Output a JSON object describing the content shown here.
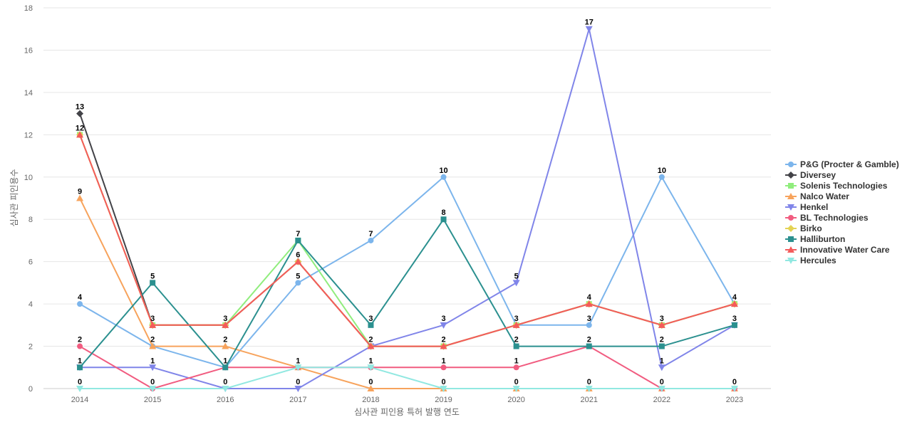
{
  "chart_data": {
    "type": "line",
    "title": "",
    "xlabel": "심사관 피인용 특허 발행 연도",
    "ylabel": "심사관 피인용수",
    "ylim": [
      0,
      18
    ],
    "yticks": [
      0,
      2,
      4,
      6,
      8,
      10,
      12,
      14,
      16,
      18
    ],
    "categories": [
      "2014",
      "2015",
      "2016",
      "2017",
      "2018",
      "2019",
      "2020",
      "2021",
      "2022",
      "2023"
    ],
    "legend_position": "right",
    "series": [
      {
        "name": "P&G (Procter & Gamble)",
        "color": "#7cb5ec",
        "marker": "circle",
        "values": [
          4,
          2,
          1,
          5,
          7,
          10,
          3,
          3,
          10,
          4
        ]
      },
      {
        "name": "Diversey",
        "color": "#434348",
        "marker": "diamond",
        "values": [
          13,
          3,
          3,
          6,
          2,
          2,
          3,
          4,
          3,
          4
        ]
      },
      {
        "name": "Solenis Technologies",
        "color": "#90ed7d",
        "marker": "square",
        "values": [
          12,
          3,
          3,
          7,
          2,
          2,
          3,
          4,
          3,
          4
        ]
      },
      {
        "name": "Nalco Water",
        "color": "#f7a35c",
        "marker": "triangle",
        "values": [
          9,
          2,
          2,
          1,
          0,
          0,
          0,
          0,
          0,
          0
        ]
      },
      {
        "name": "Henkel",
        "color": "#8085e9",
        "marker": "triangle-down",
        "values": [
          1,
          1,
          0,
          0,
          2,
          3,
          5,
          17,
          1,
          3
        ]
      },
      {
        "name": "BL Technologies",
        "color": "#f15c80",
        "marker": "circle",
        "values": [
          2,
          0,
          1,
          1,
          1,
          1,
          1,
          2,
          0,
          0
        ]
      },
      {
        "name": "Birko",
        "color": "#e4d354",
        "marker": "diamond",
        "values": [
          12,
          3,
          3,
          6,
          2,
          2,
          3,
          4,
          3,
          4
        ]
      },
      {
        "name": "Halliburton",
        "color": "#2b908f",
        "marker": "square",
        "values": [
          1,
          5,
          1,
          7,
          3,
          8,
          2,
          2,
          2,
          3
        ]
      },
      {
        "name": "Innovative Water Care",
        "color": "#f45b5b",
        "marker": "triangle",
        "values": [
          12,
          3,
          3,
          6,
          2,
          2,
          3,
          4,
          3,
          4
        ]
      },
      {
        "name": "Hercules",
        "color": "#91e8e1",
        "marker": "triangle-down",
        "values": [
          0,
          0,
          0,
          1,
          1,
          0,
          0,
          0,
          0,
          0
        ]
      }
    ],
    "data_labels": [
      {
        "x": "2014",
        "y": 13,
        "text": "13"
      },
      {
        "x": "2014",
        "y": 12,
        "text": "12"
      },
      {
        "x": "2014",
        "y": 9,
        "text": "9"
      },
      {
        "x": "2014",
        "y": 4,
        "text": "4"
      },
      {
        "x": "2014",
        "y": 2,
        "text": "2"
      },
      {
        "x": "2014",
        "y": 1,
        "text": "1"
      },
      {
        "x": "2014",
        "y": 0,
        "text": "0"
      },
      {
        "x": "2015",
        "y": 5,
        "text": "5"
      },
      {
        "x": "2015",
        "y": 3,
        "text": "3"
      },
      {
        "x": "2015",
        "y": 2,
        "text": "2"
      },
      {
        "x": "2015",
        "y": 1,
        "text": "1"
      },
      {
        "x": "2015",
        "y": 0,
        "text": "0"
      },
      {
        "x": "2016",
        "y": 3,
        "text": "3"
      },
      {
        "x": "2016",
        "y": 2,
        "text": "2"
      },
      {
        "x": "2016",
        "y": 1,
        "text": "1"
      },
      {
        "x": "2016",
        "y": 0,
        "text": "0"
      },
      {
        "x": "2017",
        "y": 7,
        "text": "7"
      },
      {
        "x": "2017",
        "y": 6,
        "text": "6"
      },
      {
        "x": "2017",
        "y": 5,
        "text": "5"
      },
      {
        "x": "2017",
        "y": 1,
        "text": "1"
      },
      {
        "x": "2017",
        "y": 0,
        "text": "0"
      },
      {
        "x": "2018",
        "y": 7,
        "text": "7"
      },
      {
        "x": "2018",
        "y": 3,
        "text": "3"
      },
      {
        "x": "2018",
        "y": 2,
        "text": "2"
      },
      {
        "x": "2018",
        "y": 1,
        "text": "1"
      },
      {
        "x": "2018",
        "y": 0,
        "text": "0"
      },
      {
        "x": "2019",
        "y": 10,
        "text": "10"
      },
      {
        "x": "2019",
        "y": 8,
        "text": "8"
      },
      {
        "x": "2019",
        "y": 3,
        "text": "3"
      },
      {
        "x": "2019",
        "y": 2,
        "text": "2"
      },
      {
        "x": "2019",
        "y": 1,
        "text": "1"
      },
      {
        "x": "2019",
        "y": 0,
        "text": "0"
      },
      {
        "x": "2020",
        "y": 5,
        "text": "5"
      },
      {
        "x": "2020",
        "y": 3,
        "text": "3"
      },
      {
        "x": "2020",
        "y": 2,
        "text": "2"
      },
      {
        "x": "2020",
        "y": 1,
        "text": "1"
      },
      {
        "x": "2020",
        "y": 0,
        "text": "0"
      },
      {
        "x": "2021",
        "y": 17,
        "text": "17"
      },
      {
        "x": "2021",
        "y": 4,
        "text": "4"
      },
      {
        "x": "2021",
        "y": 3,
        "text": "3"
      },
      {
        "x": "2021",
        "y": 2,
        "text": "2"
      },
      {
        "x": "2021",
        "y": 0,
        "text": "0"
      },
      {
        "x": "2022",
        "y": 10,
        "text": "10"
      },
      {
        "x": "2022",
        "y": 3,
        "text": "3"
      },
      {
        "x": "2022",
        "y": 2,
        "text": "2"
      },
      {
        "x": "2022",
        "y": 1,
        "text": "1"
      },
      {
        "x": "2022",
        "y": 0,
        "text": "0"
      },
      {
        "x": "2023",
        "y": 4,
        "text": "4"
      },
      {
        "x": "2023",
        "y": 3,
        "text": "3"
      },
      {
        "x": "2023",
        "y": 0,
        "text": "0"
      }
    ]
  }
}
